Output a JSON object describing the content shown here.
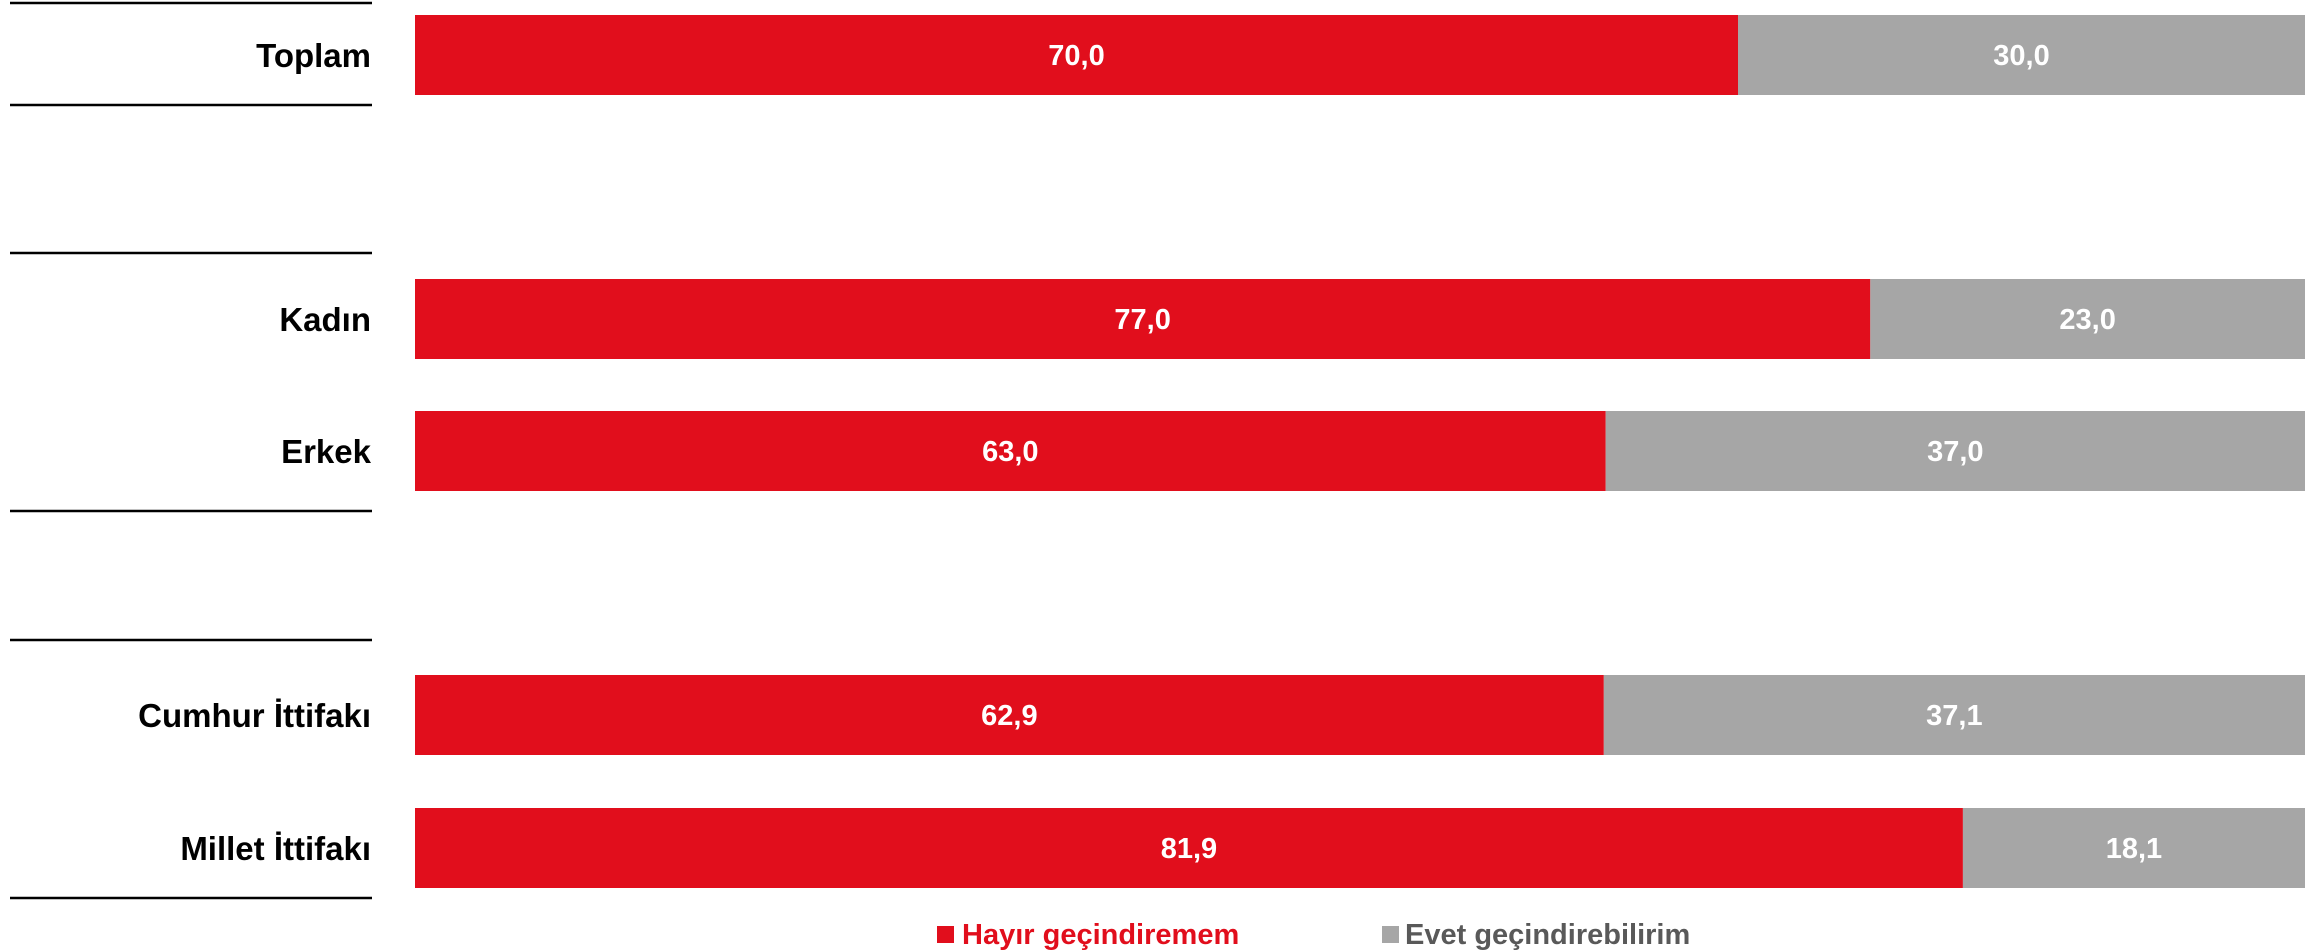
{
  "colors": {
    "hayir": "#e10e1c",
    "evet": "#a6a6a6",
    "axis_line": "#000000",
    "category_text": "#000000",
    "value_text": "#ffffff",
    "legend_hayir_text": "#e10e1c",
    "legend_evet_text": "#595959"
  },
  "chart_data": {
    "type": "bar",
    "orientation": "horizontal",
    "stacked": true,
    "percent_stacked": true,
    "categories": [
      "Toplam",
      "Kadın",
      "Erkek",
      "Cumhur İttifakı",
      "Millet İttifakı"
    ],
    "groups": [
      {
        "categories": [
          "Toplam"
        ]
      },
      {
        "categories": [
          "Kadın",
          "Erkek"
        ]
      },
      {
        "categories": [
          "Cumhur İttifakı",
          "Millet İttifakı"
        ]
      }
    ],
    "series": [
      {
        "name": "Hayır geçindiremem",
        "color_key": "hayir",
        "values": [
          70.0,
          77.0,
          63.0,
          62.9,
          81.9
        ],
        "labels": [
          "70,0",
          "77,0",
          "63,0",
          "62,9",
          "81,9"
        ]
      },
      {
        "name": "Evet geçindirebilirim",
        "color_key": "evet",
        "values": [
          30.0,
          23.0,
          37.0,
          37.1,
          18.1
        ],
        "labels": [
          "30,0",
          "23,0",
          "37,0",
          "37,1",
          "18,1"
        ]
      }
    ],
    "xlim": [
      0,
      100
    ],
    "grid": false,
    "legend_position": "bottom-center"
  }
}
